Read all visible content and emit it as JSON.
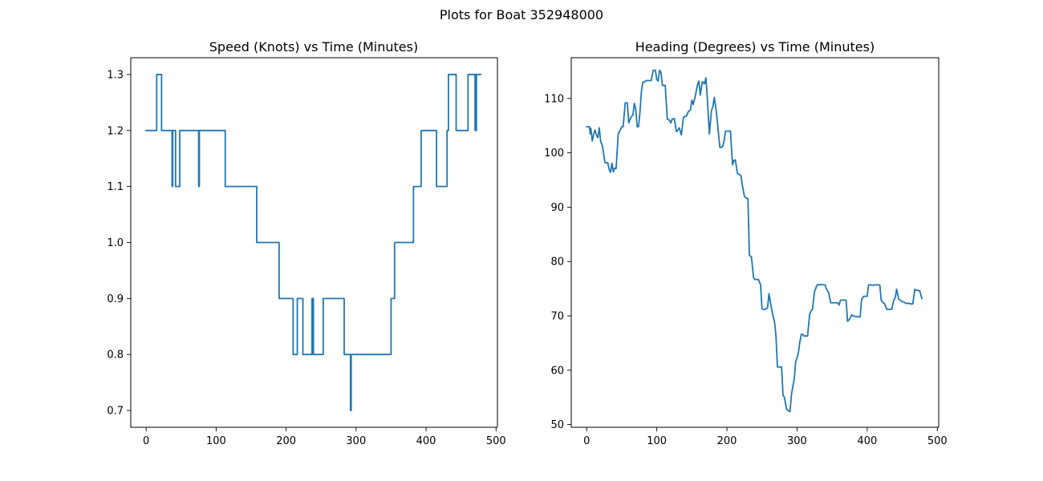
{
  "figure": {
    "suptitle": "Plots for Boat 352948000",
    "line_color": "#1f77b4"
  },
  "chart_data": [
    {
      "type": "line",
      "title": "Speed (Knots) vs Time (Minutes)",
      "xlabel": "",
      "ylabel": "",
      "xlim": [
        -22,
        502
      ],
      "ylim": [
        0.67,
        1.33
      ],
      "xticks": [
        0,
        100,
        200,
        300,
        400,
        500
      ],
      "yticks": [
        0.7,
        0.8,
        0.9,
        1.0,
        1.1,
        1.2,
        1.3
      ],
      "ytick_labels": [
        "0.7",
        "0.8",
        "0.9",
        "1.0",
        "1.1",
        "1.2",
        "1.3"
      ],
      "grid": false,
      "series": [
        {
          "step": true,
          "x": [
            0,
            15,
            22,
            37,
            38,
            42,
            48,
            62,
            75,
            76,
            78,
            113,
            158,
            190,
            210,
            216,
            224,
            237,
            239,
            242,
            253,
            283,
            292,
            293,
            294,
            350,
            355,
            360,
            382,
            393,
            415,
            430,
            432,
            443,
            460,
            470,
            472,
            478
          ],
          "y": [
            1.2,
            1.3,
            1.2,
            1.1,
            1.2,
            1.1,
            1.2,
            1.2,
            1.1,
            1.2,
            1.2,
            1.1,
            1.0,
            0.9,
            0.8,
            0.9,
            0.8,
            0.9,
            0.8,
            0.8,
            0.9,
            0.8,
            0.7,
            0.8,
            0.8,
            0.9,
            1.0,
            1.0,
            1.1,
            1.2,
            1.1,
            1.2,
            1.3,
            1.2,
            1.3,
            1.2,
            1.3,
            1.3
          ]
        }
      ]
    },
    {
      "type": "line",
      "title": "Heading (Degrees) vs Time (Minutes)",
      "xlabel": "",
      "ylabel": "",
      "xlim": [
        -22,
        502
      ],
      "ylim": [
        49.5,
        117.5
      ],
      "xticks": [
        0,
        100,
        200,
        300,
        400,
        500
      ],
      "yticks": [
        50,
        60,
        70,
        80,
        90,
        100,
        110
      ],
      "ytick_labels": [
        "50",
        "60",
        "70",
        "80",
        "90",
        "100",
        "110"
      ],
      "grid": false,
      "series": [
        {
          "step": false,
          "x": [
            0,
            4,
            5,
            6,
            8,
            10,
            12,
            14,
            16,
            18,
            20,
            22,
            24,
            26,
            28,
            30,
            32,
            34,
            36,
            38,
            40,
            42,
            45,
            48,
            50,
            52,
            55,
            58,
            60,
            63,
            66,
            68,
            70,
            72,
            74,
            76,
            78,
            80,
            82,
            85,
            88,
            92,
            95,
            98,
            100,
            102,
            104,
            106,
            108,
            110,
            112,
            115,
            118,
            120,
            122,
            125,
            128,
            130,
            132,
            135,
            138,
            140,
            142,
            145,
            148,
            150,
            152,
            155,
            158,
            160,
            162,
            165,
            168,
            170,
            172,
            175,
            178,
            180,
            182,
            185,
            188,
            190,
            192,
            194,
            196,
            198,
            200,
            202,
            205,
            208,
            210,
            212,
            215,
            218,
            220,
            222,
            225,
            228,
            230,
            232,
            235,
            238,
            240,
            242,
            245,
            248,
            250,
            252,
            255,
            258,
            260,
            262,
            265,
            268,
            270,
            272,
            275,
            278,
            280,
            282,
            285,
            288,
            290,
            292,
            294,
            296,
            298,
            300,
            302,
            304,
            306,
            308,
            310,
            312,
            315,
            318,
            320,
            322,
            325,
            328,
            330,
            332,
            335,
            338,
            340,
            342,
            345,
            348,
            350,
            352,
            355,
            358,
            360,
            362,
            365,
            368,
            370,
            372,
            375,
            378,
            380,
            382,
            385,
            388,
            390,
            392,
            395,
            398,
            400,
            402,
            405,
            408,
            410,
            412,
            415,
            418,
            420,
            422,
            425,
            428,
            430,
            432,
            435,
            438,
            440,
            442,
            445,
            448,
            450,
            452,
            455,
            458,
            460,
            462,
            465,
            468,
            470,
            472,
            475,
            478
          ],
          "y": [
            104.8,
            104.8,
            103.5,
            104.5,
            102.2,
            103.5,
            104.2,
            103.2,
            102.8,
            104.6,
            102,
            101.5,
            100,
            98.2,
            98.2,
            98.2,
            97,
            96.4,
            98.1,
            96.5,
            97.2,
            97.1,
            103.5,
            104.2,
            104.8,
            104.8,
            109.2,
            109.2,
            105.5,
            106.5,
            107,
            109.1,
            108.1,
            104.8,
            104.8,
            107.5,
            111.2,
            113,
            113,
            113.3,
            113.3,
            113.3,
            115.2,
            115.2,
            113.5,
            113.2,
            115.2,
            114.8,
            112.4,
            112.4,
            112.4,
            106.2,
            106,
            105.5,
            106.2,
            106.3,
            103.9,
            104.2,
            104.6,
            103.3,
            106.5,
            106.7,
            106.7,
            107.6,
            107.9,
            109.7,
            108.9,
            110.5,
            112.5,
            113.2,
            110.6,
            113.1,
            112.7,
            113.8,
            110.2,
            103.5,
            107.8,
            108.5,
            110.2,
            107.5,
            103.5,
            101,
            101,
            101.2,
            102.2,
            104,
            104,
            104,
            104,
            97.8,
            98.6,
            98.7,
            96.2,
            96,
            95.8,
            94,
            92,
            91.6,
            91.6,
            81.2,
            80.8,
            77,
            76.7,
            76.7,
            76.7,
            75.7,
            71.3,
            71.2,
            71.2,
            71.5,
            74.1,
            72.5,
            70.4,
            68.8,
            66.2,
            60.6,
            60.6,
            60.6,
            55.4,
            55,
            52.8,
            52.5,
            52.4,
            55.5,
            57,
            58.4,
            61.5,
            62.3,
            63.3,
            65.2,
            66.6,
            66.6,
            66.3,
            66.3,
            66.3,
            70.3,
            70.9,
            71.2,
            74.5,
            75.5,
            75.8,
            75.7,
            75.8,
            75.7,
            75.7,
            74.9,
            74.3,
            72.4,
            72.4,
            72.4,
            72.4,
            72.4,
            72,
            72.9,
            72.9,
            72.9,
            72.9,
            69,
            69.4,
            70.2,
            70,
            69.9,
            69.9,
            69.8,
            69.8,
            73,
            73.6,
            73.6,
            73.6,
            75.7,
            75.7,
            75.6,
            75.7,
            75.7,
            75.7,
            75.7,
            72.9,
            72.5,
            72.2,
            71.2,
            71.2,
            71.2,
            71.2,
            72.9,
            73.3,
            74.9,
            73.1,
            72.8,
            72.6,
            72.6,
            72.3,
            72.3,
            72.3,
            72.2,
            72.2,
            74.9,
            74.7,
            74.7,
            74.6,
            73.2
          ]
        }
      ]
    }
  ]
}
